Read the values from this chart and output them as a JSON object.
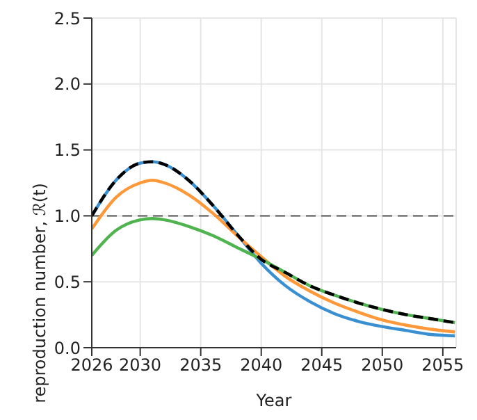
{
  "chart_data": {
    "type": "line",
    "xlabel": "Year",
    "ylabel": "reproduction number, ℛ(t)",
    "x": [
      2026,
      2028,
      2030,
      2031,
      2032,
      2034,
      2036,
      2038,
      2040,
      2042,
      2044,
      2046,
      2048,
      2050,
      2052,
      2054,
      2056
    ],
    "series": [
      {
        "color": "#3a8fd0",
        "values": [
          1.0,
          1.27,
          1.4,
          1.41,
          1.39,
          1.27,
          1.08,
          0.86,
          0.64,
          0.47,
          0.35,
          0.26,
          0.2,
          0.16,
          0.13,
          0.1,
          0.09
        ]
      },
      {
        "color": "#ff9838",
        "values": [
          0.9,
          1.14,
          1.25,
          1.27,
          1.25,
          1.16,
          1.02,
          0.85,
          0.69,
          0.54,
          0.43,
          0.34,
          0.27,
          0.21,
          0.17,
          0.14,
          0.12
        ]
      },
      {
        "color": "#4fb34f",
        "values": [
          0.7,
          0.89,
          0.97,
          0.98,
          0.97,
          0.92,
          0.85,
          0.76,
          0.67,
          0.57,
          0.47,
          0.4,
          0.34,
          0.29,
          0.25,
          0.22,
          0.19
        ]
      },
      {
        "color": "#000000",
        "line_style": "dashed",
        "values": [
          1.0,
          1.27,
          1.4,
          1.41,
          1.39,
          1.27,
          1.08,
          0.86,
          0.67,
          0.57,
          0.47,
          0.4,
          0.34,
          0.29,
          0.25,
          0.22,
          0.19
        ]
      }
    ],
    "xlim": [
      2026,
      2056.1
    ],
    "xticks": [
      2026,
      2030,
      2035,
      2040,
      2045,
      2050,
      2055
    ],
    "ylim": [
      0,
      2.5
    ],
    "yticks": [
      {
        "value": 0,
        "label": "0.0"
      },
      0.5,
      {
        "value": 1,
        "label": "1.0"
      },
      1.5,
      {
        "value": 2,
        "label": "2.0"
      },
      2.5
    ],
    "ref_lines": [
      {
        "axis": "y",
        "value": 1,
        "color": "#808080",
        "line_style": "dashed"
      }
    ],
    "grid": true,
    "marker": "none",
    "line_style": "solid"
  }
}
